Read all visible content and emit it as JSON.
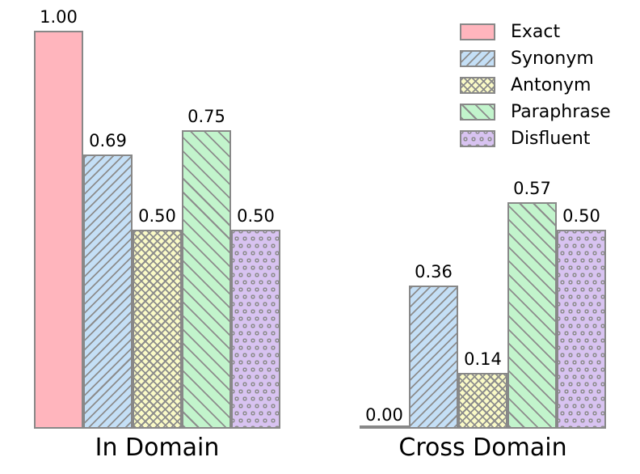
{
  "chart_data": {
    "type": "bar",
    "title": "",
    "xlabel": "",
    "ylabel": "",
    "categories": [
      "In Domain",
      "Cross Domain"
    ],
    "series": [
      {
        "name": "Exact",
        "values": [
          1.0,
          0.0
        ],
        "labels": [
          "1.00",
          "0.00"
        ],
        "fill": "#ffb5bd",
        "hatch": "none"
      },
      {
        "name": "Synonym",
        "values": [
          0.69,
          0.36
        ],
        "labels": [
          "0.69",
          "0.36"
        ],
        "fill": "#c4dff6",
        "hatch": "forward-diagonal"
      },
      {
        "name": "Antonym",
        "values": [
          0.5,
          0.14
        ],
        "labels": [
          "0.50",
          "0.14"
        ],
        "fill": "#fafac6",
        "hatch": "cross-diagonal"
      },
      {
        "name": "Paraphrase",
        "values": [
          0.75,
          0.57
        ],
        "labels": [
          "0.75",
          "0.57"
        ],
        "fill": "#c2f4cc",
        "hatch": "back-diagonal"
      },
      {
        "name": "Disfluent",
        "values": [
          0.5,
          0.5
        ],
        "labels": [
          "0.50",
          "0.50"
        ],
        "fill": "#d8c3f1",
        "hatch": "dots"
      }
    ],
    "ylim": [
      0,
      1.0
    ],
    "grid": false,
    "axes_visible": false,
    "bar_value_labels_shown": true,
    "legend": {
      "position": "top-right"
    },
    "edge_color": "#888888",
    "hatch_color": "#8c8c8c",
    "text_color": "#000000",
    "background": "#ffffff"
  }
}
